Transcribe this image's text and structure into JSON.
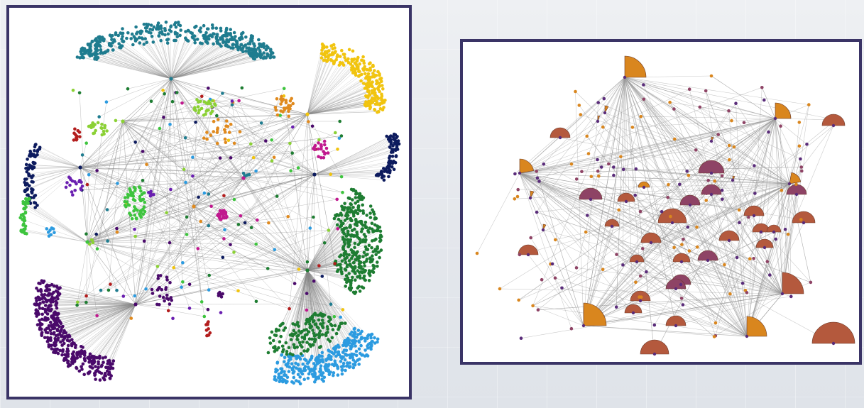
{
  "figure": {
    "left_panel": {
      "kind": "node-link-graph",
      "layout": "radial-clusters",
      "edge_color": "#8a8a8a",
      "clusters": [
        {
          "name": "teal",
          "color": "#1f7c8f"
        },
        {
          "name": "yellow",
          "color": "#f1c40f"
        },
        {
          "name": "navy",
          "color": "#0d1b5e"
        },
        {
          "name": "dark-green",
          "color": "#1e7d32"
        },
        {
          "name": "sky-blue",
          "color": "#2c9be0"
        },
        {
          "name": "purple",
          "color": "#4a0a6b"
        },
        {
          "name": "lime",
          "color": "#8bd135"
        },
        {
          "name": "magenta",
          "color": "#c0188e"
        },
        {
          "name": "orange",
          "color": "#e08a1e"
        },
        {
          "name": "red",
          "color": "#b31d1d"
        },
        {
          "name": "violet",
          "color": "#6a1fb0"
        },
        {
          "name": "light-green",
          "color": "#3ec43e"
        }
      ]
    },
    "right_panel": {
      "kind": "aggregated-node-link-graph",
      "glyph": "semicircle-sector",
      "edge_color": "#9a9a9a",
      "colors": {
        "orange": "#d9861e",
        "rust": "#b4593d",
        "plum": "#8e4365",
        "node": "#5a2c7a"
      }
    }
  }
}
